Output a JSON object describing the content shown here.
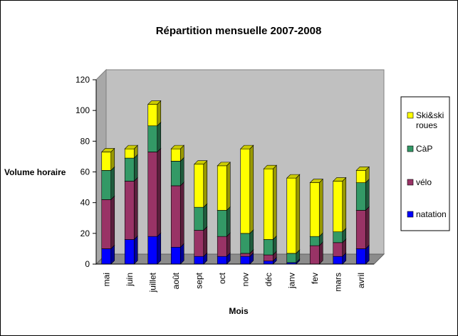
{
  "chart_data": {
    "type": "bar",
    "stacked": true,
    "three_d": true,
    "title": "Répartition mensuelle 2007-2008",
    "xlabel": "Mois",
    "ylabel": "Volume horaire",
    "ylim": [
      0,
      120
    ],
    "yticks": [
      "0",
      "20",
      "40",
      "60",
      "80",
      "100",
      "120"
    ],
    "grid": false,
    "legend_position": "right",
    "categories": [
      "mai",
      "juin",
      "juillet",
      "août",
      "sept",
      "oct",
      "nov",
      "déc",
      "janv",
      "fev",
      "mars",
      "avril"
    ],
    "series": [
      {
        "name": "natation",
        "color": "#0000ff",
        "values": [
          10,
          16,
          18,
          11,
          5,
          5,
          5,
          2,
          1,
          0,
          5,
          10
        ]
      },
      {
        "name": "vélo",
        "color": "#993366",
        "values": [
          32,
          38,
          55,
          40,
          17,
          13,
          2,
          4,
          0,
          12,
          9,
          25
        ]
      },
      {
        "name": "CàP",
        "color": "#339966",
        "values": [
          19,
          15,
          17,
          16,
          15,
          17,
          13,
          10,
          6,
          6,
          7,
          18
        ]
      },
      {
        "name": "Ski&ski roues",
        "color": "#ffff00",
        "values": [
          12,
          6,
          14,
          8,
          28,
          29,
          55,
          46,
          49,
          35,
          33,
          8
        ]
      }
    ],
    "legend_order": [
      "Ski&ski roues",
      "CàP",
      "vélo",
      "natation"
    ]
  }
}
